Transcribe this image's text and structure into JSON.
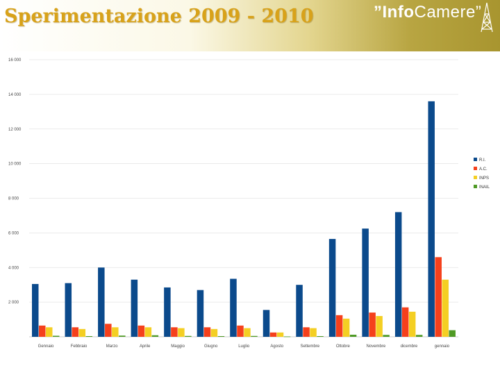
{
  "header": {
    "title": "Sperimentazione 2009 - 2010",
    "logo_part1": "”Info",
    "logo_part2": "Camere”"
  },
  "colors": {
    "title": "#d8a21a",
    "header_gold": "#a8952f",
    "series": [
      "#0b4a8c",
      "#f5401c",
      "#f4cf23",
      "#4f9a25"
    ]
  },
  "icons": [
    "antenna-icon"
  ],
  "chart_data": {
    "type": "bar",
    "title": "",
    "xlabel": "",
    "ylabel": "",
    "categories": [
      "Gennaio",
      "Febbraio",
      "Marzo",
      "Aprile",
      "Maggio",
      "Giugno",
      "Luglio",
      "Agosto",
      "Settembre",
      "Ottobre",
      "Novembre",
      "dicembre",
      "gennaio"
    ],
    "series": [
      {
        "name": "R.I.",
        "values": [
          3050,
          3100,
          4000,
          3300,
          2850,
          2700,
          3350,
          1550,
          3000,
          5650,
          6250,
          7200,
          13600
        ]
      },
      {
        "name": "A.C.",
        "values": [
          650,
          550,
          750,
          650,
          550,
          550,
          650,
          250,
          550,
          1250,
          1400,
          1700,
          4600
        ]
      },
      {
        "name": "INPS",
        "values": [
          550,
          450,
          550,
          550,
          500,
          450,
          500,
          250,
          500,
          1050,
          1200,
          1450,
          3300
        ]
      },
      {
        "name": "INAIL",
        "values": [
          60,
          40,
          70,
          90,
          50,
          40,
          50,
          20,
          40,
          120,
          110,
          110,
          380
        ]
      }
    ],
    "ylim": [
      0,
      16000
    ],
    "yticks": [
      "16 000",
      "14 000",
      "12 000",
      "10 000",
      "8 000",
      "6 000",
      "4 000",
      "2 000"
    ],
    "grid": "horizontal",
    "legend": "right"
  }
}
